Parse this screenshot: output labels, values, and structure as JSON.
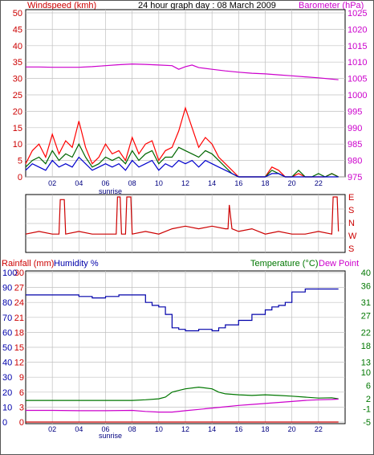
{
  "header": {
    "windspeed_label": "Windspeed (kmh)",
    "title": "24 hour graph day : 08 March 2009",
    "barometer_label": "Barometer (hPa)"
  },
  "middle": {
    "compass_labels": [
      "E",
      "S",
      "N",
      "W",
      "S"
    ]
  },
  "lower_header": {
    "rainfall_label": "Rainfall (mm)",
    "humidity_label": "Humidity %",
    "temperature_label": "Temperature (°C)",
    "dewpoint_label": "Dew Point"
  },
  "sunrise_label": "sunrise",
  "colors": {
    "wind": "#cc0000",
    "gust": "#ff0000",
    "avg_wind": "#006600",
    "wind_blue": "#0000cc",
    "barometer": "#cc00cc",
    "humidity": "#0000aa",
    "temperature": "#007700",
    "dewpoint": "#cc00cc",
    "rain": "#cc0000",
    "grid": "#c0c0c0"
  },
  "chart_data": [
    {
      "type": "line",
      "title": "24 hour graph day : 08 March 2009",
      "xlabel": "",
      "x_ticks": [
        "02",
        "04",
        "06",
        "08",
        "10",
        "12",
        "14",
        "16",
        "18",
        "20",
        "22"
      ],
      "y_left": {
        "label": "Windspeed (kmh)",
        "ticks": [
          0,
          5,
          10,
          15,
          20,
          25,
          30,
          35,
          40,
          45,
          50
        ],
        "lim": [
          0,
          50
        ]
      },
      "y_right": {
        "label": "Barometer (hPa)",
        "ticks": [
          975,
          980,
          985,
          990,
          995,
          1000,
          1005,
          1010,
          1015,
          1020,
          1025
        ],
        "lim": [
          975,
          1025
        ]
      },
      "grid": true,
      "series": [
        {
          "name": "Barometer (hPa)",
          "axis": "right",
          "x": [
            0,
            1,
            2,
            3,
            4,
            5,
            6,
            7,
            8,
            9,
            10,
            11,
            11.5,
            12,
            12.5,
            13,
            14,
            15,
            16,
            17,
            18,
            19,
            20,
            21,
            22,
            23,
            23.5
          ],
          "y": [
            1008.5,
            1008.5,
            1008.4,
            1008.4,
            1008.4,
            1008.6,
            1008.9,
            1009.2,
            1009.4,
            1009.3,
            1009.1,
            1008.9,
            1007.8,
            1008.6,
            1009.1,
            1008.3,
            1007.8,
            1007.3,
            1006.9,
            1006.6,
            1006.4,
            1006.1,
            1005.8,
            1005.5,
            1005.2,
            1004.8,
            1004.6
          ]
        },
        {
          "name": "",
          "axis": "left",
          "x": [
            0,
            0.5,
            1,
            1.5,
            2,
            2.5,
            3,
            3.5,
            4,
            4.5,
            5,
            5.5,
            6,
            6.5,
            7,
            7.5,
            8,
            8.5,
            9,
            9.5,
            10,
            10.5,
            11,
            11.5,
            12,
            12.5,
            13,
            13.5,
            14,
            14.5,
            15,
            15.5,
            16,
            16.5,
            17,
            17.5,
            18,
            18.5,
            19,
            19.5,
            20,
            20.5,
            21,
            21.5,
            22,
            22.5,
            23,
            23.5
          ],
          "y": [
            4,
            8,
            10,
            6,
            13,
            7,
            11,
            9,
            17,
            9,
            4,
            6,
            10,
            7,
            8,
            5,
            12,
            7,
            10,
            11,
            5,
            8,
            9,
            14,
            21,
            15,
            9,
            12,
            10,
            6,
            4,
            2,
            0,
            0,
            0,
            0,
            0,
            3,
            2,
            0,
            0,
            1,
            0,
            0,
            0,
            0,
            1,
            0
          ]
        },
        {
          "name": "",
          "axis": "left",
          "x": [
            0,
            0.5,
            1,
            1.5,
            2,
            2.5,
            3,
            3.5,
            4,
            4.5,
            5,
            5.5,
            6,
            6.5,
            7,
            7.5,
            8,
            8.5,
            9,
            9.5,
            10,
            10.5,
            11,
            11.5,
            12,
            12.5,
            13,
            13.5,
            14,
            14.5,
            15,
            15.5,
            16,
            16.5,
            17,
            17.5,
            18,
            18.5,
            19,
            19.5,
            20,
            20.5,
            21,
            21.5,
            22,
            22.5,
            23,
            23.5
          ],
          "y": [
            3,
            5,
            6,
            4,
            8,
            5,
            7,
            6,
            10,
            6,
            3,
            4,
            6,
            5,
            6,
            4,
            8,
            5,
            7,
            8,
            4,
            6,
            6,
            9,
            8,
            7,
            6,
            8,
            7,
            5,
            3,
            1,
            0,
            0,
            0,
            0,
            0,
            2,
            1,
            0,
            0,
            2,
            0,
            0,
            1,
            0,
            1,
            0
          ]
        },
        {
          "name": "",
          "axis": "left",
          "x": [
            0,
            0.5,
            1,
            1.5,
            2,
            2.5,
            3,
            3.5,
            4,
            4.5,
            5,
            5.5,
            6,
            6.5,
            7,
            7.5,
            8,
            8.5,
            9,
            9.5,
            10,
            10.5,
            11,
            11.5,
            12,
            12.5,
            13,
            13.5,
            14,
            14.5,
            15,
            15.5,
            16,
            16.5,
            17,
            17.5,
            18,
            18.5,
            19,
            19.5,
            20,
            20.5,
            21,
            21.5,
            22,
            22.5,
            23,
            23.5
          ],
          "y": [
            2,
            4,
            3,
            2,
            5,
            3,
            4,
            3,
            6,
            4,
            2,
            3,
            4,
            3,
            4,
            2,
            5,
            3,
            4,
            5,
            2,
            4,
            3,
            5,
            4,
            5,
            3,
            5,
            4,
            3,
            2,
            1,
            0,
            0,
            0,
            0,
            0,
            1,
            1,
            0,
            0,
            0,
            0,
            0,
            0,
            0,
            0,
            0
          ]
        }
      ]
    },
    {
      "type": "line",
      "title": "",
      "y_right": {
        "ticks": [
          "E",
          "S",
          "N",
          "W",
          "S"
        ]
      },
      "series": [
        {
          "name": "",
          "x": [
            0,
            1,
            2,
            2.5,
            2.6,
            2.9,
            3,
            4,
            5,
            6,
            6.8,
            6.9,
            7.1,
            7.2,
            7.5,
            7.6,
            7.9,
            8,
            9,
            10,
            11,
            12,
            13,
            14,
            15,
            15.2,
            15.3,
            15.5,
            16,
            17,
            18,
            19,
            20,
            21,
            22,
            23,
            23.1,
            23.4,
            23.5
          ],
          "y": [
            0.3,
            0.35,
            0.3,
            0.3,
            0.95,
            0.95,
            0.3,
            0.35,
            0.3,
            0.3,
            0.3,
            1.0,
            1.0,
            0.3,
            0.3,
            1.0,
            1.0,
            0.3,
            0.35,
            0.3,
            0.4,
            0.45,
            0.4,
            0.45,
            0.4,
            0.4,
            0.85,
            0.4,
            0.35,
            0.4,
            0.3,
            0.35,
            0.3,
            0.3,
            0.35,
            0.3,
            1.0,
            1.0,
            0.35
          ]
        }
      ]
    },
    {
      "type": "line",
      "title": "",
      "xlabel": "",
      "x_ticks": [
        "02",
        "04",
        "06",
        "08",
        "10",
        "12",
        "14",
        "16",
        "18",
        "20",
        "22"
      ],
      "y_left_rain": {
        "label": "Rainfall (mm)",
        "ticks": [
          0,
          3,
          6,
          9,
          12,
          15,
          18,
          21,
          24,
          27,
          30
        ],
        "lim": [
          0,
          30
        ]
      },
      "y_left_humidity": {
        "label": "Humidity %",
        "ticks": [
          0,
          10,
          20,
          30,
          40,
          50,
          60,
          70,
          80,
          90,
          100
        ],
        "lim": [
          0,
          100
        ]
      },
      "y_right": {
        "label": "Temperature (°C)",
        "ticks": [
          -5,
          -1,
          2,
          6,
          10,
          13,
          18,
          22,
          27,
          31,
          36,
          40
        ],
        "lim": [
          -5,
          40
        ]
      },
      "series": [
        {
          "name": "Humidity %",
          "axis": "humidity",
          "x": [
            0,
            2,
            4,
            5,
            6,
            7,
            8,
            9,
            9.5,
            10,
            10.5,
            11,
            11.5,
            12,
            13,
            14,
            14.5,
            15,
            16,
            17,
            18,
            18.5,
            19,
            19.5,
            20,
            21,
            22,
            23,
            23.5
          ],
          "y": [
            85,
            85,
            84,
            83,
            84,
            85,
            85,
            80,
            78,
            77,
            72,
            63,
            62,
            61,
            62,
            61,
            63,
            65,
            68,
            72,
            75,
            77,
            78,
            80,
            87,
            89,
            89,
            89,
            89
          ]
        },
        {
          "name": "Temperature (°C)",
          "axis": "right",
          "x": [
            0,
            2,
            4,
            6,
            8,
            9,
            10,
            10.5,
            11,
            11.5,
            12,
            13,
            14,
            14.5,
            15,
            16,
            17,
            18,
            19,
            20,
            21,
            22,
            23,
            23.5
          ],
          "y": [
            1.5,
            1.5,
            1.5,
            1.5,
            1.5,
            1.7,
            2.0,
            2.5,
            4.0,
            4.5,
            5.0,
            5.5,
            5.0,
            4.0,
            3.5,
            3.2,
            3.0,
            3.2,
            3.0,
            2.8,
            2.5,
            2.2,
            2.3,
            2.0
          ]
        },
        {
          "name": "Dew Point",
          "axis": "right",
          "x": [
            0,
            2,
            4,
            6,
            8,
            9,
            10,
            11,
            12,
            13,
            14,
            15,
            16,
            17,
            18,
            19,
            20,
            21,
            22,
            23,
            23.5
          ],
          "y": [
            -1.5,
            -1.5,
            -1.6,
            -1.6,
            -1.5,
            -1.8,
            -2.0,
            -2.0,
            -1.6,
            -1.2,
            -0.8,
            -0.4,
            0.0,
            0.3,
            0.6,
            0.9,
            1.2,
            1.5,
            1.7,
            1.8,
            1.9
          ]
        },
        {
          "name": "Rainfall (mm)",
          "axis": "rain",
          "x": [
            0,
            23.5
          ],
          "y": [
            0,
            0
          ]
        }
      ]
    }
  ]
}
